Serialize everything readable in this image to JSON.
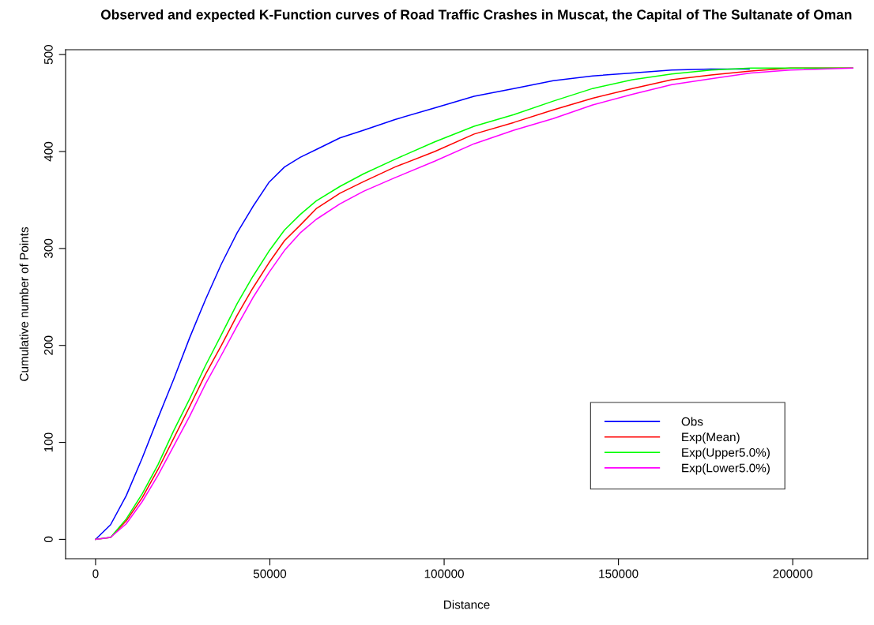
{
  "chart_data": {
    "type": "line",
    "title": "Observed and expected K-Function curves of Road Traffic Crashes in Muscat, the Capital of The Sultanate of Oman",
    "xlabel": "Distance",
    "ylabel": "Cumulative number of Points",
    "x": [
      0,
      4300,
      8800,
      13400,
      17900,
      22400,
      27000,
      31500,
      36100,
      40600,
      45100,
      49700,
      54200,
      58700,
      63300,
      70100,
      76900,
      85900,
      97300,
      108600,
      120000,
      131300,
      142600,
      154000,
      165300,
      176600,
      188000,
      199300,
      217200
    ],
    "series": [
      {
        "name": "Obs",
        "color": "#0000ff",
        "x": [
          0,
          4300,
          8800,
          13400,
          17900,
          22400,
          27000,
          31500,
          36100,
          40600,
          45100,
          49700,
          54200,
          58700,
          63300,
          70100,
          76900,
          85900,
          97300,
          108600,
          120000,
          131300,
          142600,
          154000,
          165300,
          176600,
          187500
        ],
        "values": [
          0,
          15,
          45,
          84,
          125,
          165,
          208,
          247,
          284,
          316,
          343,
          368,
          384,
          394,
          402,
          414,
          422,
          433,
          445,
          457,
          465,
          473,
          478,
          481,
          484,
          485,
          485
        ]
      },
      {
        "name": "Exp(Mean)",
        "color": "#ff0000",
        "values": [
          0,
          2,
          19,
          43,
          72,
          104,
          137,
          170,
          200,
          231,
          259,
          285,
          308,
          324,
          341,
          357,
          369,
          384,
          400,
          418,
          430,
          443,
          455,
          465,
          474,
          479,
          483,
          486,
          486
        ]
      },
      {
        "name": "Exp(Upper5.0%)",
        "color": "#00ff00",
        "values": [
          0,
          2,
          21,
          47,
          77,
          112,
          145,
          179,
          211,
          243,
          271,
          297,
          319,
          335,
          349,
          364,
          377,
          392,
          410,
          426,
          438,
          452,
          465,
          474,
          480,
          484,
          486,
          486,
          486
        ]
      },
      {
        "name": "Exp(Lower5.0%)",
        "color": "#ff00ff",
        "values": [
          0,
          2,
          16,
          39,
          66,
          96,
          127,
          160,
          190,
          220,
          249,
          275,
          298,
          316,
          330,
          346,
          359,
          373,
          390,
          408,
          422,
          434,
          448,
          459,
          469,
          475,
          481,
          484,
          486
        ]
      }
    ],
    "xlim": [
      -8600,
      221500
    ],
    "ylim": [
      -20,
      505
    ],
    "xticks": [
      0,
      50000,
      100000,
      150000,
      200000
    ],
    "yticks": [
      0,
      100,
      200,
      300,
      400,
      500
    ],
    "grid": false,
    "legend": "bottom right"
  }
}
